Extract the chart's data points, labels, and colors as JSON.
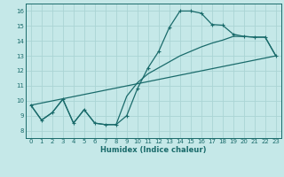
{
  "xlabel": "Humidex (Indice chaleur)",
  "bg_color": "#c5e8e8",
  "grid_color": "#aad4d4",
  "line_color": "#1a6b6b",
  "xlim": [
    -0.5,
    23.5
  ],
  "ylim": [
    7.5,
    16.5
  ],
  "xticks": [
    0,
    1,
    2,
    3,
    4,
    5,
    6,
    7,
    8,
    9,
    10,
    11,
    12,
    13,
    14,
    15,
    16,
    17,
    18,
    19,
    20,
    21,
    22,
    23
  ],
  "yticks": [
    8,
    9,
    10,
    11,
    12,
    13,
    14,
    15,
    16
  ],
  "line1_x": [
    0,
    1,
    2,
    3,
    4,
    5,
    6,
    7,
    8,
    9,
    10,
    11,
    12,
    13,
    14,
    15,
    16,
    17,
    18,
    19,
    20,
    21,
    22,
    23
  ],
  "line1_y": [
    9.7,
    8.7,
    9.2,
    10.1,
    8.5,
    9.4,
    8.5,
    8.4,
    8.4,
    9.0,
    10.8,
    12.2,
    13.3,
    14.9,
    16.0,
    16.0,
    15.85,
    15.1,
    15.05,
    14.45,
    14.3,
    14.25,
    14.25,
    13.0
  ],
  "line2_x": [
    0,
    1,
    2,
    3,
    4,
    5,
    6,
    7,
    8,
    9,
    10,
    11,
    12,
    13,
    14,
    15,
    16,
    17,
    18,
    19,
    20,
    21,
    22,
    23
  ],
  "line2_y": [
    9.7,
    8.7,
    9.2,
    10.1,
    8.5,
    9.4,
    8.5,
    8.4,
    8.4,
    10.3,
    11.2,
    11.8,
    12.2,
    12.6,
    13.0,
    13.3,
    13.6,
    13.85,
    14.05,
    14.3,
    14.3,
    14.25,
    14.25,
    13.0
  ],
  "line3_x": [
    0,
    23
  ],
  "line3_y": [
    9.7,
    13.0
  ]
}
